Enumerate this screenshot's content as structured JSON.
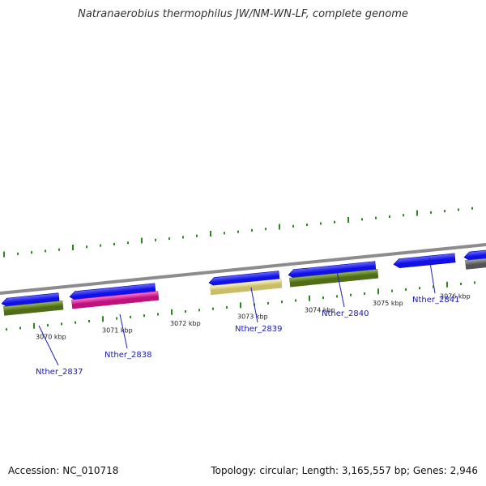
{
  "title": "Natranaerobius thermophilus JW/NM-WN-LF, complete genome",
  "footer": {
    "accession": "Accession: NC_010718",
    "summary": "Topology: circular; Length: 3,165,557 bp; Genes: 2,946"
  },
  "colors": {
    "backbone": "#8c8c8c",
    "forward_gene": "#1010e8",
    "ticks": "#2b8a1e",
    "feature_green": "#6b8e23",
    "feature_pink": "#ee1fa0",
    "feature_yellow": "#f0e68c",
    "feature_gray": "#707070",
    "label_text": "#1a1ab0"
  },
  "scale_labels": [
    "3070 kbp",
    "3071 kbp",
    "3072 kbp",
    "3073 kbp",
    "3074 kbp",
    "3075 kbp",
    "3076 kbp"
  ],
  "genes": [
    {
      "label": "Nther_2837",
      "strand": "forward",
      "color": "#1010e8",
      "feature_color": "#6b8e23"
    },
    {
      "label": "Nther_2838",
      "strand": "forward",
      "color": "#1010e8",
      "feature_color": "#ee1fa0"
    },
    {
      "label": "Nther_2839",
      "strand": "forward",
      "color": "#1010e8",
      "feature_color": "#f0e68c"
    },
    {
      "label": "Nther_2840",
      "strand": "forward",
      "color": "#1010e8",
      "feature_color": "#6b8e23"
    },
    {
      "label": "Nther_2841",
      "strand": "forward",
      "color": "#1010e8",
      "feature_color": null
    },
    {
      "label": "",
      "strand": "forward",
      "color": "#1010e8",
      "feature_color": "#707070"
    }
  ]
}
